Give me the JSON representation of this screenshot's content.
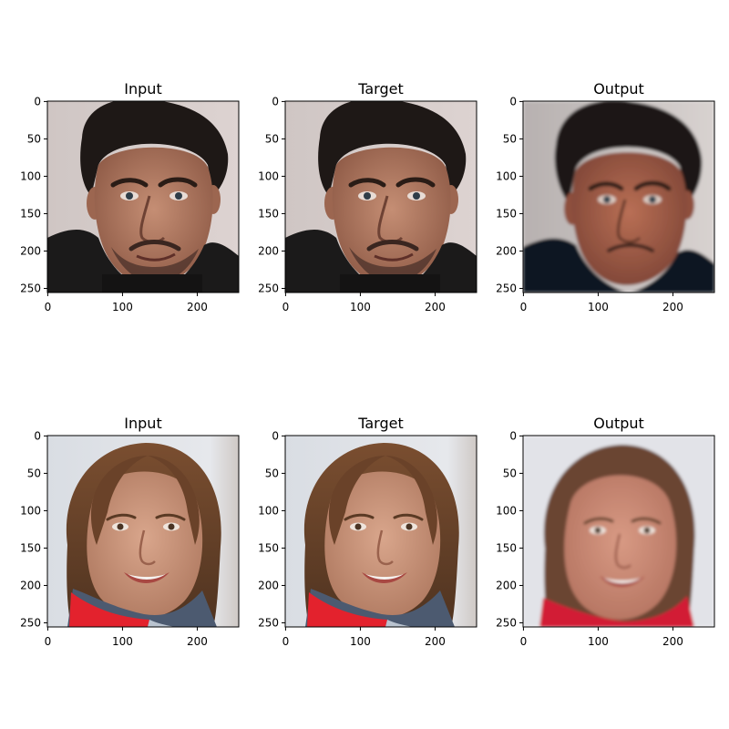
{
  "figure": {
    "rows": [
      {
        "subject": "man",
        "panels": [
          {
            "title": "Input",
            "image": "face-man-input"
          },
          {
            "title": "Target",
            "image": "face-man-target"
          },
          {
            "title": "Output",
            "image": "face-man-output"
          }
        ]
      },
      {
        "subject": "woman",
        "panels": [
          {
            "title": "Input",
            "image": "face-woman-input"
          },
          {
            "title": "Target",
            "image": "face-woman-target"
          },
          {
            "title": "Output",
            "image": "face-woman-output"
          }
        ]
      }
    ],
    "x_ticks": [
      "0",
      "100",
      "200"
    ],
    "x_tick_values": [
      0,
      100,
      200
    ],
    "y_ticks": [
      "0",
      "50",
      "100",
      "150",
      "200",
      "250"
    ],
    "y_tick_values": [
      0,
      50,
      100,
      150,
      200,
      250
    ],
    "image_extent": 256
  }
}
